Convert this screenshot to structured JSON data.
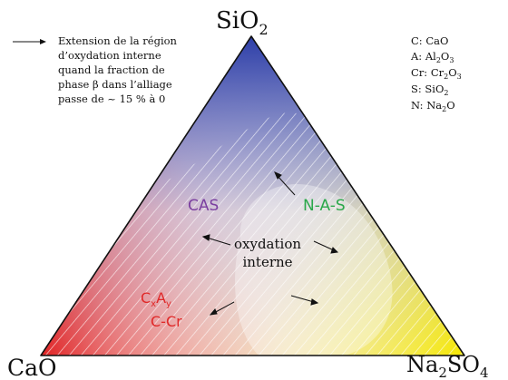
{
  "diagram": {
    "vertices": {
      "top": {
        "base": "SiO",
        "sub": "2"
      },
      "left": {
        "text": "CaO"
      },
      "right": {
        "base1": "Na",
        "sub1": "2",
        "base2": "SO",
        "sub2": "4"
      }
    },
    "legend_arrow": {
      "lines": [
        "Extension de la région",
        "d’oxydation interne",
        "quand la fraction de",
        "phase β dans l’alliage",
        "passe de ~ 15 % à 0"
      ]
    },
    "abbreviations": [
      {
        "key": "C: ",
        "base": "CaO",
        "sub": ""
      },
      {
        "key": "A: ",
        "base": "Al",
        "sub": "2",
        "base2": "O",
        "sub2": "3"
      },
      {
        "key": "Cr: ",
        "base": "Cr",
        "sub": "2",
        "base2": "O",
        "sub2": "3"
      },
      {
        "key": "S: ",
        "base": "SiO",
        "sub": "2",
        "base2": "",
        "sub2": ""
      },
      {
        "key": "N: ",
        "base": "Na",
        "sub": "2",
        "base2": "O",
        "sub2": ""
      }
    ],
    "regions": {
      "cas": {
        "text": "CAS",
        "color": "#7b3fa0"
      },
      "nas": {
        "text": "N-A-S",
        "color": "#2aa84a"
      },
      "internal": {
        "line1": "oxydation",
        "line2": "interne"
      },
      "cxay": {
        "c": "C",
        "x": "x",
        "a": "A",
        "y": "y",
        "color": "#e02828"
      },
      "ccr": {
        "text": "C-Cr",
        "color": "#e02828"
      }
    },
    "colors": {
      "top": "#2e3fa8",
      "left": "#e01818",
      "right": "#f6e800"
    }
  }
}
